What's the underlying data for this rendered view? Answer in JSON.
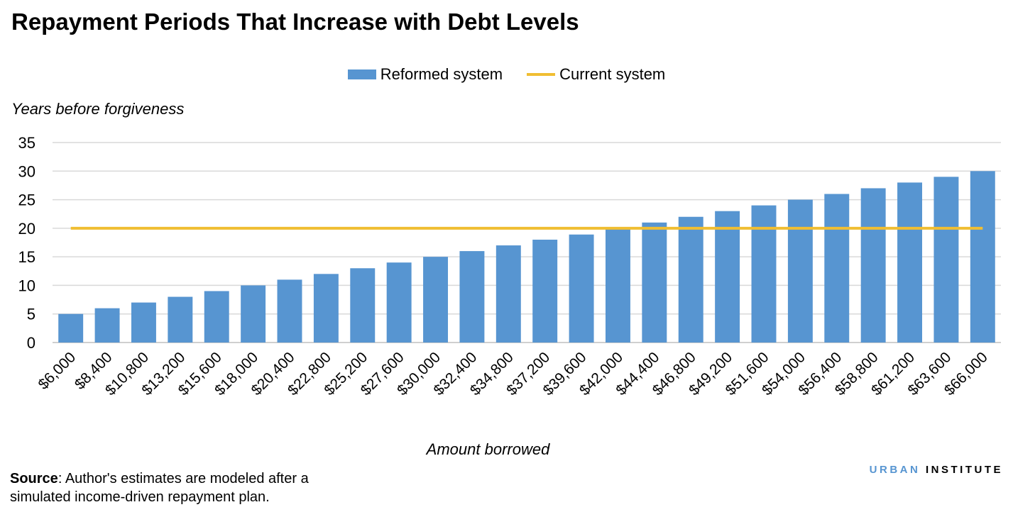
{
  "chart_data": {
    "type": "bar",
    "title": "Repayment Periods That Increase with Debt Levels",
    "xlabel": "Amount borrowed",
    "ylabel": "Years before forgiveness",
    "ylim": [
      0,
      35
    ],
    "yticks": [
      0,
      5,
      10,
      15,
      20,
      25,
      30,
      35
    ],
    "grid": true,
    "legend_placement": "top-center",
    "categories": [
      "$6,000",
      "$8,400",
      "$10,800",
      "$13,200",
      "$15,600",
      "$18,000",
      "$20,400",
      "$22,800",
      "$25,200",
      "$27,600",
      "$30,000",
      "$32,400",
      "$34,800",
      "$37,200",
      "$39,600",
      "$42,000",
      "$44,400",
      "$46,800",
      "$49,200",
      "$51,600",
      "$54,000",
      "$56,400",
      "$58,800",
      "$61,200",
      "$63,600",
      "$66,000"
    ],
    "series": [
      {
        "name": "Reformed system",
        "type": "bar",
        "color": "#5795d1",
        "values": [
          5,
          6,
          7,
          8,
          9,
          10,
          11,
          12,
          13,
          14,
          15,
          16,
          17,
          18,
          18.9,
          20,
          21,
          22,
          23,
          24,
          25,
          26,
          27,
          28,
          29,
          30
        ]
      },
      {
        "name": "Current system",
        "type": "line",
        "color": "#f0be32",
        "values": [
          20,
          20,
          20,
          20,
          20,
          20,
          20,
          20,
          20,
          20,
          20,
          20,
          20,
          20,
          20,
          20,
          20,
          20,
          20,
          20,
          20,
          20,
          20,
          20,
          20,
          20
        ]
      }
    ]
  },
  "source": {
    "label": "Source",
    "text": ": Author's estimates are modeled after a",
    "text2": "simulated income-driven repayment plan."
  },
  "logo": {
    "part1": "URBAN",
    "part2": "INSTITUTE"
  }
}
